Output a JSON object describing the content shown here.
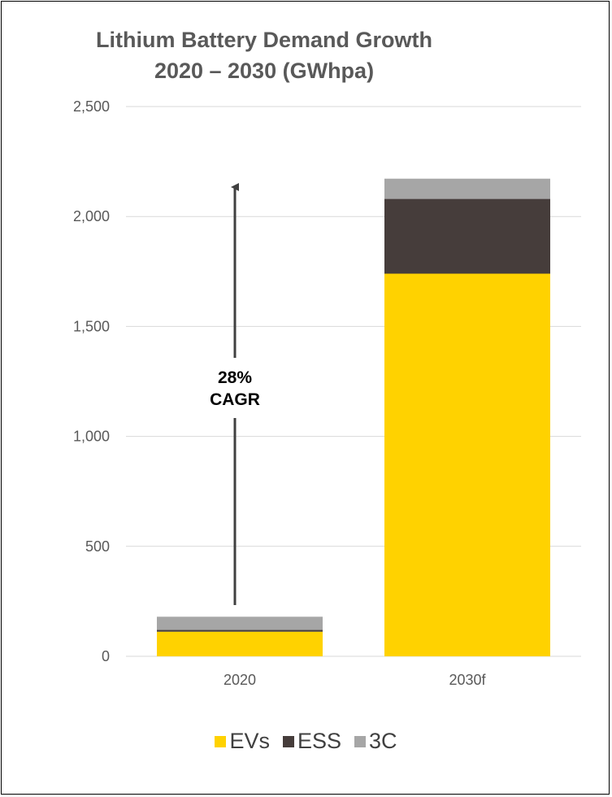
{
  "title_lines": [
    "Lithium Battery Demand Growth",
    "2020 – 2030 (GWhpa)"
  ],
  "annotation": [
    "28%",
    "CAGR"
  ],
  "colors": {
    "EVs": "#FFD200",
    "ESS": "#463D3B",
    "3C": "#A6A6A6",
    "grid": "#D9D9D9",
    "arrow": "#404040"
  },
  "chart_data": {
    "type": "bar",
    "stacked": true,
    "title": "Lithium Battery Demand Growth 2020 – 2030 (GWhpa)",
    "categories": [
      "2020",
      "2030f"
    ],
    "series": [
      {
        "name": "EVs",
        "values": [
          112,
          1740
        ]
      },
      {
        "name": "ESS",
        "values": [
          8,
          340
        ]
      },
      {
        "name": "3C",
        "values": [
          60,
          92
        ]
      }
    ],
    "yticks": [
      "0",
      "500",
      "1,000",
      "1,500",
      "2,000",
      "2,500"
    ],
    "ylim": [
      0,
      2500
    ],
    "grid": true,
    "legend": "bottom",
    "annotation": "28% CAGR"
  }
}
